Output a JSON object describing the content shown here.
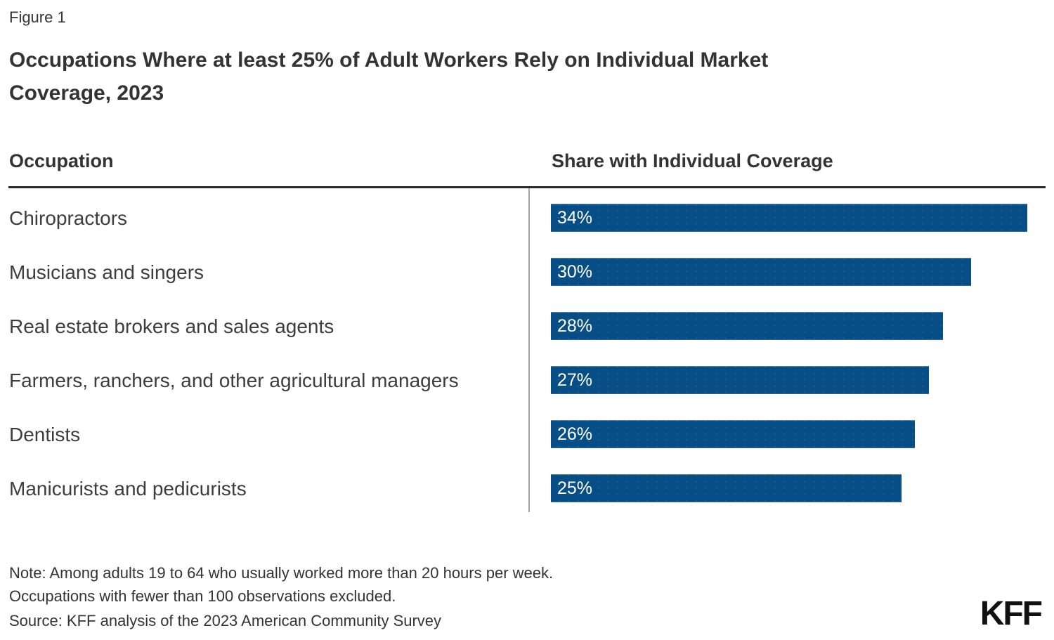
{
  "figure": {
    "label": "Figure 1"
  },
  "title": {
    "full": "Occupations Where at least 25% of Adult Workers Rely on Individual Market Coverage, 2023",
    "line1": "Occupations Where at least 25% of Adult Workers Rely on Individual Market",
    "line2": "Coverage, 2023"
  },
  "table": {
    "occupation_header": "Occupation",
    "share_header": "Share with Individual Coverage"
  },
  "chart_data": {
    "type": "bar",
    "orientation": "horizontal",
    "title": "Occupations Where at least 25% of Adult Workers Rely on Individual Market Coverage, 2023",
    "categories": [
      "Chiropractors",
      "Musicians and singers",
      "Real estate brokers and sales agents",
      "Farmers, ranchers, and other agricultural managers",
      "Dentists",
      "Manicurists and pedicurists"
    ],
    "values": [
      34,
      30,
      28,
      27,
      26,
      25
    ],
    "value_labels": [
      "34%",
      "30%",
      "28%",
      "27%",
      "26%",
      "25%"
    ],
    "xlabel": "Share with Individual Coverage",
    "ylabel": "Occupation",
    "xlim": [
      0,
      34
    ],
    "grid": false,
    "legend": false,
    "bar_color": "#074d86",
    "value_label_color": "#ffffff"
  },
  "footer": {
    "note_line1": "Note: Among adults 19 to 64 who usually worked more than 20 hours per week.",
    "note_line2": "Occupations with fewer than 100 observations excluded.",
    "source": "Source: KFF analysis of the 2023 American Community Survey",
    "logo": "KFF"
  }
}
